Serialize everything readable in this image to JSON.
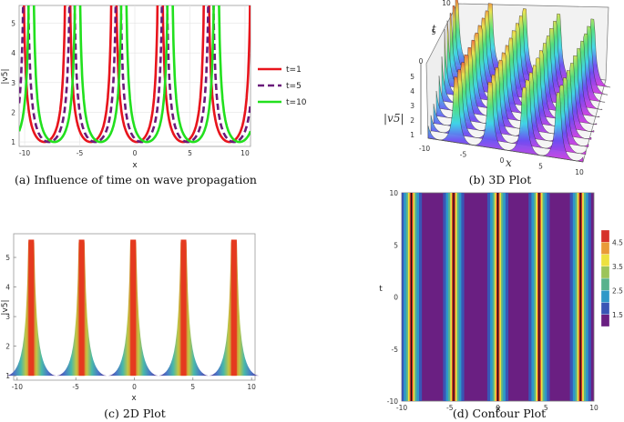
{
  "captions": {
    "a": "(a) Influence of time on wave propagation",
    "b": "(b) 3D Plot",
    "c": "(c) 2D Plot",
    "d": "(d) Contour Plot"
  },
  "chart_data": [
    {
      "id": "a",
      "type": "line",
      "xlabel": "x",
      "ylabel": "|v5|",
      "xlim": [
        -10.5,
        10.5
      ],
      "ylim": [
        0.85,
        5.6
      ],
      "x_ticks": [
        "-10",
        "-5",
        "0",
        "5",
        "10"
      ],
      "y_ticks": [
        "1",
        "2",
        "3",
        "4",
        "5"
      ],
      "series": [
        {
          "name": "t=1",
          "color": "#e8141c",
          "dash": "solid",
          "phase": 0.2
        },
        {
          "name": "t=5",
          "color": "#6a1b7a",
          "dash": "dashed",
          "phase": 0.6
        },
        {
          "name": "t=10",
          "color": "#22e01e",
          "dash": "solid",
          "phase": 1.1
        }
      ],
      "period": 4.2,
      "minimum": 1,
      "legend": "right"
    },
    {
      "id": "b",
      "type": "area",
      "xlabel": "x",
      "ylabel": "t",
      "zlabel": "|v5|",
      "x_ticks": [
        "-10",
        "-5",
        "0",
        "5",
        "10"
      ],
      "t_ticks": [
        "0",
        "5",
        "10"
      ],
      "z_ticks": [
        "1",
        "2",
        "3",
        "4",
        "5"
      ],
      "colormap": "rainbow"
    },
    {
      "id": "c",
      "type": "area",
      "xlabel": "x",
      "ylabel": "|v5|",
      "xlim": [
        -10.3,
        10.3
      ],
      "ylim": [
        0.85,
        5.8
      ],
      "x_ticks": [
        "-10",
        "-5",
        "0",
        "5",
        "10"
      ],
      "y_ticks": [
        "1",
        "2",
        "3",
        "4",
        "5"
      ],
      "peaks_x": [
        -8.8,
        -4.5,
        -0.1,
        4.2,
        8.5
      ],
      "minimum": 1,
      "max": 5.6
    },
    {
      "id": "d",
      "type": "heatmap",
      "xlabel": "x",
      "ylabel": "t",
      "xlim": [
        -10,
        10
      ],
      "ylim": [
        -10,
        10
      ],
      "x_ticks": [
        "-10",
        "-5",
        "0",
        "5",
        "10"
      ],
      "y_ticks": [
        "-10",
        "-5",
        "0",
        "5",
        "10"
      ],
      "colorbar_ticks": [
        "4.5",
        "3.5",
        "2.5",
        "1.5"
      ],
      "colorbar_range": [
        1,
        5
      ],
      "peaks_x": [
        -9,
        -4.6,
        0,
        4.3,
        8.6
      ]
    }
  ]
}
